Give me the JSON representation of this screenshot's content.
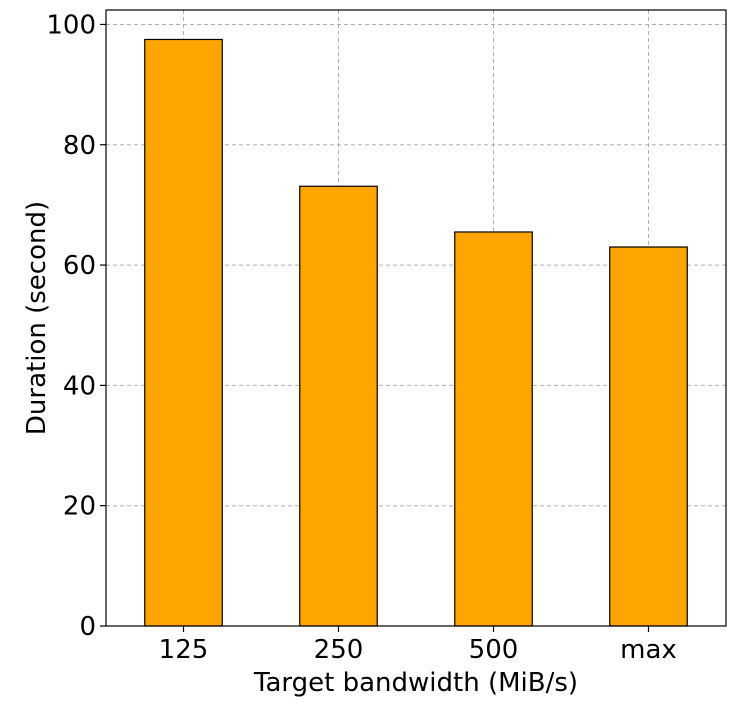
{
  "chart_data": {
    "type": "bar",
    "title": "",
    "xlabel": "Target bandwidth (MiB/s)",
    "ylabel": "Duration (second)",
    "categories": [
      "125",
      "250",
      "500",
      "max"
    ],
    "values": [
      97.5,
      73.1,
      65.5,
      63.0
    ],
    "ylim": [
      0,
      102.4
    ],
    "yticks": [
      0,
      20,
      40,
      60,
      80,
      100
    ],
    "grid": true,
    "legend": "none",
    "colors": {
      "bar_fill": "#FFA500",
      "bar_edge": "#000000",
      "grid": "#b0b0b0",
      "axis": "#000000"
    }
  }
}
